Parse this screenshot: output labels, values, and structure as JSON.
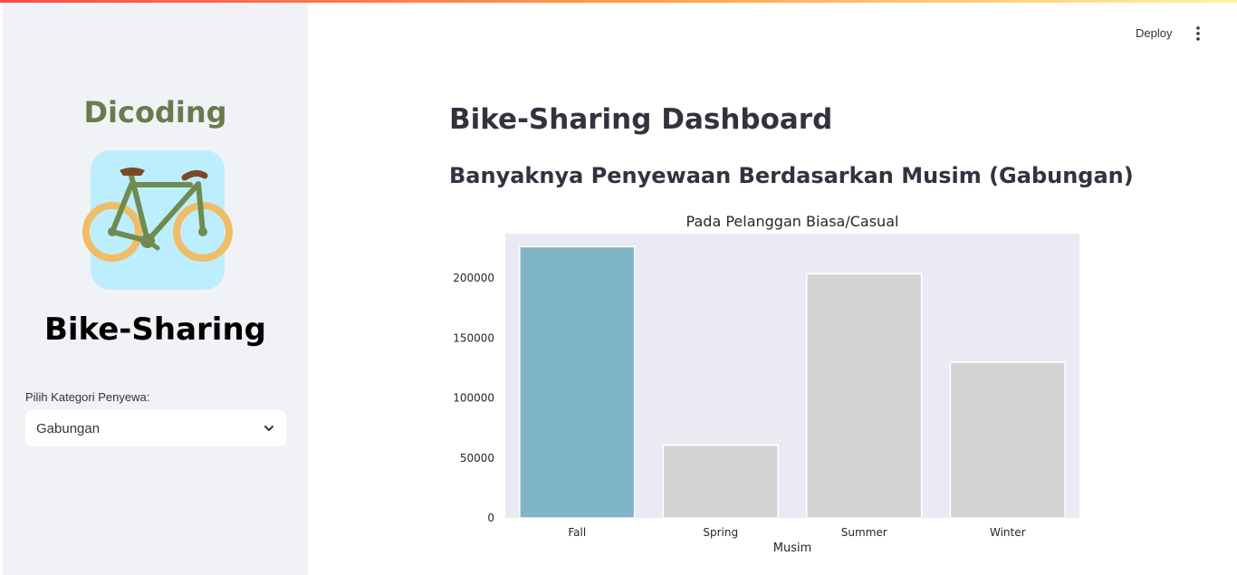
{
  "sidebar": {
    "brand": "Dicoding",
    "logo_icon": "bicycle-icon",
    "title": "Bike-Sharing",
    "select_label": "Pilih Kategori Penyewa:",
    "select_value": "Gabungan",
    "select_icon": "chevron-down-icon"
  },
  "toolbar": {
    "deploy_label": "Deploy",
    "menu_icon": "kebab-menu-icon"
  },
  "main": {
    "title": "Bike-Sharing Dashboard",
    "subheader": "Banyaknya Penyewaan Berdasarkan Musim (Gabungan)"
  },
  "colors": {
    "highlight_bar": "#80b5c8",
    "other_bar": "#d3d3d3",
    "plot_background": "#eaeaf2",
    "sidebar_background": "#f0f2f6",
    "logo_background": "#bdeefe"
  },
  "chart_data": {
    "type": "bar",
    "title": "Pada Pelanggan Biasa/Casual",
    "xlabel": "Musim",
    "ylabel": "",
    "categories": [
      "Fall",
      "Spring",
      "Summer",
      "Winter"
    ],
    "values": [
      226091,
      60622,
      203522,
      129782
    ],
    "ylim": [
      0,
      237000
    ],
    "yticks": [
      0,
      50000,
      100000,
      150000,
      200000
    ],
    "ytick_labels": [
      "0",
      "50000",
      "100000",
      "150000",
      "200000"
    ],
    "highlight_index": 0,
    "grid": false
  }
}
